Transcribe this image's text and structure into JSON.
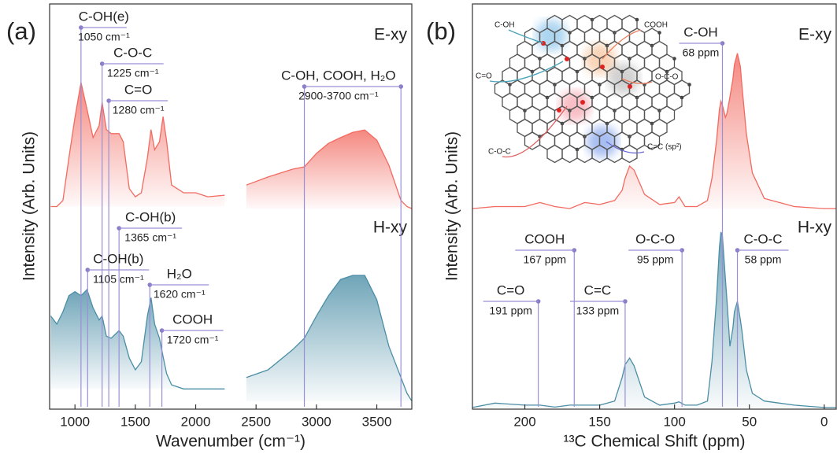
{
  "chart_data": [
    {
      "type": "line",
      "panel_label": "(a)",
      "ylabel": "Intensity (Arb. Units)",
      "xlabel": "Wavenumber (cm⁻¹)",
      "xlim": [
        790,
        3790
      ],
      "xticks": [
        1000,
        1500,
        2000,
        2500,
        3000,
        3500
      ],
      "ylim": [
        0,
        100
      ],
      "series": [
        {
          "name": "E-xy",
          "color": "#f26a60",
          "x": [
            800,
            850,
            900,
            950,
            1000,
            1050,
            1100,
            1150,
            1200,
            1225,
            1260,
            1300,
            1365,
            1400,
            1450,
            1500,
            1550,
            1600,
            1630,
            1660,
            1700,
            1730,
            1760,
            1800,
            1900,
            2000,
            2100,
            2240,
            2300,
            2420,
            2600,
            2800,
            2900,
            3000,
            3100,
            3200,
            3300,
            3400,
            3500,
            3600,
            3700,
            3750,
            3790
          ],
          "values": [
            50,
            50,
            51.5,
            62,
            72,
            80.6,
            74,
            67,
            70,
            75.7,
            69,
            68,
            68,
            66,
            54.4,
            52.4,
            53.4,
            62,
            69,
            64,
            66,
            72.2,
            66,
            55.3,
            53.4,
            53.4,
            52.4,
            52.8,
            null,
            55.3,
            57.3,
            59.2,
            59.8,
            63.1,
            65.6,
            67,
            68.3,
            68.9,
            66.4,
            60.2,
            51.5,
            50,
            49.5
          ]
        },
        {
          "name": "H-xy",
          "color": "#4b8ea6",
          "x": [
            800,
            850,
            900,
            950,
            1000,
            1050,
            1100,
            1150,
            1200,
            1225,
            1260,
            1300,
            1365,
            1400,
            1450,
            1500,
            1550,
            1600,
            1630,
            1660,
            1700,
            1730,
            1760,
            1800,
            1900,
            2000,
            2100,
            2240,
            2300,
            2420,
            2600,
            2800,
            2900,
            3000,
            3100,
            3200,
            3300,
            3400,
            3500,
            3600,
            3700,
            3750,
            3790
          ],
          "values": [
            23,
            21,
            24,
            28,
            29,
            28,
            29.5,
            25,
            22,
            23,
            18,
            17.5,
            19.4,
            18,
            12.6,
            9.7,
            11.7,
            23,
            27.5,
            21,
            17.5,
            13,
            8.7,
            6,
            5,
            5,
            5,
            5,
            null,
            7.8,
            9.7,
            14.6,
            17.5,
            23,
            28,
            32,
            33,
            33,
            27,
            15.5,
            7.8,
            3.9,
            2
          ]
        }
      ],
      "annotations": [
        {
          "label": "C-OH(e)",
          "sublabel": "1050 cm⁻¹",
          "x": 1050
        },
        {
          "label": "C-O-C",
          "sublabel": "1225 cm⁻¹",
          "x": 1225
        },
        {
          "label": "C=O",
          "sublabel": "1280 cm⁻¹",
          "x": 1280
        },
        {
          "label": "C-OH, COOH, H₂O",
          "sublabel": "2900-3700 cm⁻¹",
          "x": [
            2900,
            3700
          ]
        },
        {
          "label": "C-OH(b)",
          "sublabel": "1365 cm⁻¹",
          "x": 1365
        },
        {
          "label": "C-OH(b)",
          "sublabel": "1105 cm⁻¹",
          "x": 1105
        },
        {
          "label": "H₂O",
          "sublabel": "1620 cm⁻¹",
          "x": 1620
        },
        {
          "label": "COOH",
          "sublabel": "1720 cm⁻¹",
          "x": 1720
        }
      ]
    },
    {
      "type": "line",
      "panel_label": "(b)",
      "ylabel": "Intensity (Arb. Units)",
      "xlabel": "¹³C Chemical Shift (ppm)",
      "xlim": [
        235,
        -8
      ],
      "xticks": [
        200,
        150,
        100,
        50,
        0
      ],
      "ylim": [
        0,
        100
      ],
      "series": [
        {
          "name": "E-xy",
          "color": "#f26a60",
          "x": [
            235,
            220,
            200,
            190,
            180,
            170,
            160,
            150,
            140,
            135,
            133,
            130,
            127,
            120,
            110,
            100,
            97,
            93,
            85,
            78,
            75,
            72,
            70,
            69,
            68,
            66,
            65,
            63,
            61,
            60,
            58,
            56,
            55,
            52,
            48,
            40,
            30,
            20,
            0,
            -8
          ],
          "values": [
            49.5,
            50,
            50,
            51,
            50,
            49.5,
            51,
            50.5,
            51.5,
            54,
            57,
            60,
            59,
            53,
            50.5,
            51,
            52.4,
            50,
            50,
            51.5,
            57,
            66,
            74,
            76,
            75,
            72,
            73,
            77,
            81.5,
            85,
            87.8,
            84.5,
            80,
            68,
            58.3,
            52,
            51,
            50,
            49.5,
            49.5
          ]
        },
        {
          "name": "H-xy",
          "color": "#4b8ea6",
          "x": [
            235,
            220,
            200,
            190,
            180,
            170,
            160,
            150,
            140,
            135,
            133,
            130,
            127,
            120,
            110,
            100,
            97,
            93,
            85,
            78,
            75,
            72,
            70,
            69,
            68,
            66,
            65,
            63,
            61,
            60,
            58,
            56,
            55,
            52,
            48,
            40,
            30,
            20,
            0,
            -8
          ],
          "values": [
            0.4,
            1.5,
            1,
            1,
            0.5,
            1,
            1,
            1,
            2,
            7.8,
            11,
            12.6,
            10.7,
            3,
            1,
            1.5,
            1.8,
            1,
            1,
            2,
            11.7,
            27,
            40,
            43.7,
            42.7,
            32,
            27,
            15.5,
            20,
            24,
            26.6,
            22,
            19.4,
            9.7,
            3.9,
            2,
            1.5,
            1,
            0.4,
            0.4
          ]
        }
      ],
      "annotations": [
        {
          "label": "C-OH",
          "sublabel": "68 ppm",
          "x": 68
        },
        {
          "label": "COOH",
          "sublabel": "167 ppm",
          "x": 167
        },
        {
          "label": "O-C-O",
          "sublabel": "95 ppm",
          "x": 95
        },
        {
          "label": "C-O-C",
          "sublabel": "58 ppm",
          "x": 58
        },
        {
          "label": "C=O",
          "sublabel": "191 ppm",
          "x": 191
        },
        {
          "label": "C=C",
          "sublabel": "133 ppm",
          "x": 133
        }
      ],
      "inset_labels": [
        "C-OH",
        "COOH",
        "C=O",
        "O-C-O",
        "C-O-C",
        "C=C (sp²)"
      ]
    }
  ]
}
